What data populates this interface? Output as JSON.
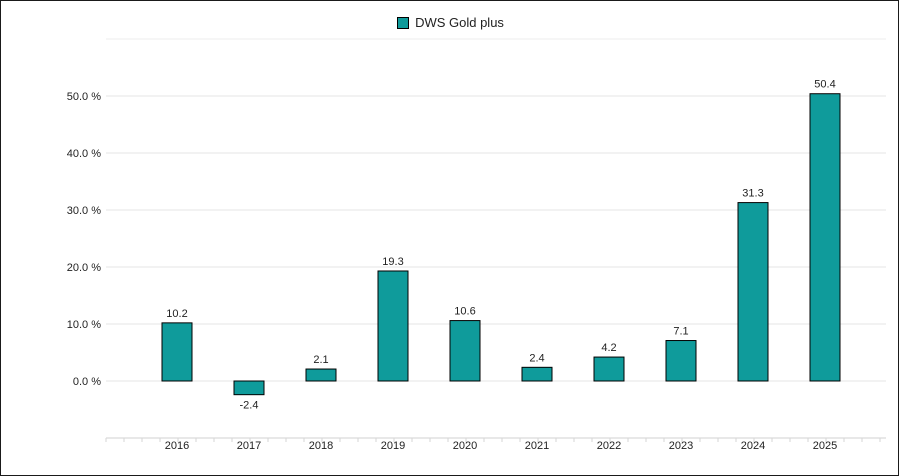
{
  "chart_data": {
    "type": "bar",
    "categories": [
      "2016",
      "2017",
      "2018",
      "2019",
      "2020",
      "2021",
      "2022",
      "2023",
      "2024",
      "2025"
    ],
    "series": [
      {
        "name": "DWS Gold plus",
        "values": [
          10.2,
          -2.4,
          2.1,
          19.3,
          10.6,
          2.4,
          4.2,
          7.1,
          31.3,
          50.4
        ]
      }
    ],
    "data_labels": [
      "10.2",
      "-2.4",
      "2.1",
      "19.3",
      "10.6",
      "2.4",
      "4.2",
      "7.1",
      "31.3",
      "50.4"
    ],
    "y_ticks": [
      0,
      10,
      20,
      30,
      40,
      50
    ],
    "y_tick_labels": [
      "0.0 %",
      "10.0 %",
      "20.0 %",
      "30.0 %",
      "40.0 %",
      "50.0 %"
    ],
    "ylim": [
      -10,
      60
    ],
    "grid": true,
    "legend_position": "top-center",
    "bar_color": "#0f9b9b"
  }
}
